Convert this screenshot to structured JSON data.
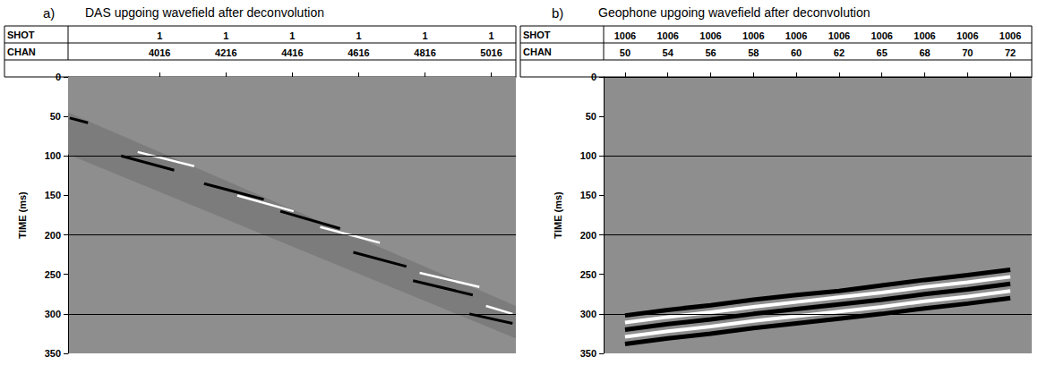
{
  "chart_data": [
    {
      "type": "line",
      "letter": "a)",
      "title": "DAS upgoing wavefield after deconvolution",
      "header_rows": [
        "SHOT",
        "CHAN"
      ],
      "y_label": "TIME (ms)",
      "xlim": [
        3740,
        5090
      ],
      "xticks": [
        4016,
        4216,
        4416,
        4616,
        4816,
        5016
      ],
      "shot": [
        1,
        1,
        1,
        1,
        1,
        1
      ],
      "ylim": [
        0,
        350
      ],
      "yticks": [
        0,
        50,
        100,
        150,
        200,
        250,
        300,
        350
      ],
      "grid": true,
      "grid_lines": [
        100,
        200,
        300
      ],
      "series": [
        {
          "type": "area",
          "color": "#7c7c7c",
          "x": [
            3740,
            5090
          ],
          "values": [
            98,
            331
          ]
        },
        {
          "type": "area",
          "color": "#8e8e8e",
          "x": [
            3740,
            5090
          ],
          "values": [
            45,
            290
          ]
        },
        {
          "type": "line",
          "color": "#000000",
          "x": [
            3745,
            3800
          ],
          "values": [
            52,
            58
          ]
        },
        {
          "type": "line",
          "color": "#000000",
          "x": [
            3900,
            4060
          ],
          "values": [
            100,
            118
          ]
        },
        {
          "type": "line",
          "color": "#000000",
          "x": [
            4150,
            4330
          ],
          "values": [
            135,
            155
          ]
        },
        {
          "type": "line",
          "color": "#000000",
          "x": [
            4380,
            4560
          ],
          "values": [
            170,
            192
          ]
        },
        {
          "type": "line",
          "color": "#000000",
          "x": [
            4600,
            4760
          ],
          "values": [
            222,
            240
          ]
        },
        {
          "type": "line",
          "color": "#000000",
          "x": [
            4780,
            4960
          ],
          "values": [
            258,
            276
          ]
        },
        {
          "type": "line",
          "color": "#000000",
          "x": [
            4950,
            5080
          ],
          "values": [
            300,
            312
          ]
        },
        {
          "type": "line",
          "color": "#ffffff",
          "x": [
            3950,
            4120
          ],
          "values": [
            95,
            113
          ]
        },
        {
          "type": "line",
          "color": "#ffffff",
          "x": [
            4250,
            4420
          ],
          "values": [
            150,
            170
          ]
        },
        {
          "type": "line",
          "color": "#ffffff",
          "x": [
            4500,
            4680
          ],
          "values": [
            190,
            210
          ]
        },
        {
          "type": "line",
          "color": "#ffffff",
          "x": [
            4800,
            4980
          ],
          "values": [
            248,
            266
          ]
        },
        {
          "type": "line",
          "color": "#ffffff",
          "x": [
            5000,
            5080
          ],
          "values": [
            290,
            300
          ]
        }
      ]
    },
    {
      "type": "line",
      "letter": "b)",
      "title": "Geophone upgoing wavefield after deconvolution",
      "header_rows": [
        "SHOT",
        "CHAN"
      ],
      "y_label": "TIME (ms)",
      "categories": [
        50,
        54,
        56,
        58,
        60,
        62,
        65,
        68,
        70,
        72
      ],
      "shot": [
        1006,
        1006,
        1006,
        1006,
        1006,
        1006,
        1006,
        1006,
        1006,
        1006
      ],
      "ylim": [
        0,
        350
      ],
      "yticks": [
        0,
        50,
        100,
        150,
        200,
        250,
        300,
        350
      ],
      "grid": true,
      "grid_lines": [
        100,
        200,
        300
      ],
      "series": [
        {
          "type": "line",
          "color": "#000000",
          "values": [
            302,
            295,
            289,
            282,
            276,
            271,
            264,
            257,
            251,
            244
          ]
        },
        {
          "type": "line",
          "color": "#ffffff",
          "values": [
            311,
            304,
            298,
            291,
            285,
            279,
            273,
            266,
            260,
            253
          ]
        },
        {
          "type": "line",
          "color": "#000000",
          "values": [
            320,
            313,
            307,
            300,
            294,
            288,
            282,
            275,
            269,
            262
          ]
        },
        {
          "type": "line",
          "color": "#ffffff",
          "values": [
            329,
            322,
            316,
            309,
            303,
            297,
            291,
            284,
            278,
            271
          ]
        },
        {
          "type": "line",
          "color": "#000000",
          "values": [
            338,
            331,
            325,
            318,
            312,
            306,
            300,
            293,
            287,
            280
          ]
        }
      ]
    }
  ]
}
